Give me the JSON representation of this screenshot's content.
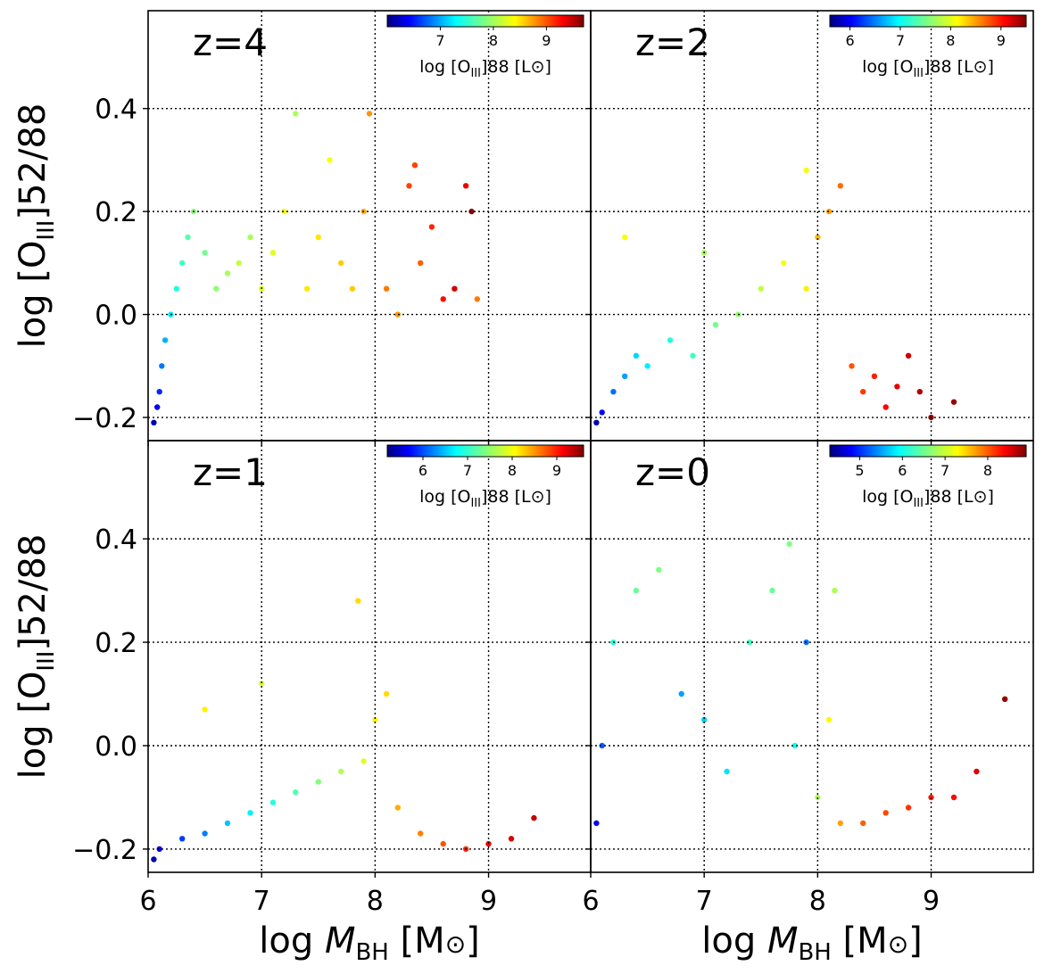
{
  "figure": {
    "ylabel_main": "log [O",
    "ylabel_sub": "III",
    "ylabel_tail": "]52/88",
    "xlabel_main": "log ",
    "xlabel_var": "M",
    "xlabel_sub": "BH",
    "xlabel_tail": " [M",
    "xlabel_unit_sym": "⊙",
    "xlabel_close": "]",
    "colormap": "jet",
    "colors": [
      "#00007f",
      "#0000ff",
      "#007fff",
      "#00ffff",
      "#7fff7f",
      "#ffff00",
      "#ff7f00",
      "#ff0000",
      "#7f0000"
    ]
  },
  "chart_data": [
    {
      "type": "scatter",
      "label": "z=4",
      "xlim": [
        6.0,
        9.9
      ],
      "ylim": [
        -0.245,
        0.59
      ],
      "xticks": [
        "6",
        "7",
        "8",
        "9"
      ],
      "yticks": [
        "−0.2",
        "0.0",
        "0.2",
        "0.4"
      ],
      "ytick_values": [
        -0.2,
        0.0,
        0.2,
        0.4
      ],
      "xtick_values": [
        6,
        7,
        8,
        9
      ],
      "grid": true,
      "colorbar": {
        "ticks": [
          "7",
          "8",
          "9"
        ],
        "tick_values": [
          7,
          8,
          9
        ],
        "range": [
          6.0,
          9.7
        ],
        "label_main": "log [O",
        "label_sub": "III",
        "label_tail": "]88 [L",
        "label_sym": "⊙",
        "label_close": "]",
        "placement": "top-right"
      },
      "points": [
        [
          6.05,
          -0.21,
          6.2
        ],
        [
          6.08,
          -0.18,
          6.4
        ],
        [
          6.1,
          -0.15,
          6.6
        ],
        [
          6.12,
          -0.1,
          6.9
        ],
        [
          6.15,
          -0.05,
          7.1
        ],
        [
          6.2,
          0.0,
          7.3
        ],
        [
          6.25,
          0.05,
          7.5
        ],
        [
          6.3,
          0.1,
          7.6
        ],
        [
          6.35,
          0.15,
          7.7
        ],
        [
          6.4,
          0.2,
          7.9
        ],
        [
          6.5,
          0.12,
          7.8
        ],
        [
          6.6,
          0.05,
          7.9
        ],
        [
          6.7,
          0.08,
          8.0
        ],
        [
          6.8,
          0.1,
          8.1
        ],
        [
          6.9,
          0.15,
          8.0
        ],
        [
          7.0,
          0.05,
          8.2
        ],
        [
          7.1,
          0.12,
          8.2
        ],
        [
          7.2,
          0.2,
          8.3
        ],
        [
          7.3,
          0.39,
          8.0
        ],
        [
          7.4,
          0.05,
          8.4
        ],
        [
          7.5,
          0.15,
          8.4
        ],
        [
          7.6,
          0.3,
          8.3
        ],
        [
          7.7,
          0.1,
          8.5
        ],
        [
          7.8,
          0.05,
          8.5
        ],
        [
          7.9,
          0.2,
          8.6
        ],
        [
          7.95,
          0.39,
          8.7
        ],
        [
          8.1,
          0.05,
          8.8
        ],
        [
          8.2,
          0.0,
          8.7
        ],
        [
          8.3,
          0.25,
          9.0
        ],
        [
          8.35,
          0.29,
          9.0
        ],
        [
          8.4,
          0.1,
          8.9
        ],
        [
          8.5,
          0.17,
          9.1
        ],
        [
          8.6,
          0.03,
          9.2
        ],
        [
          8.7,
          0.05,
          9.4
        ],
        [
          8.8,
          0.25,
          9.3
        ],
        [
          8.85,
          0.2,
          9.6
        ],
        [
          8.9,
          0.03,
          8.8
        ]
      ]
    },
    {
      "type": "scatter",
      "label": "z=2",
      "xlim": [
        6.0,
        9.9
      ],
      "ylim": [
        -0.245,
        0.59
      ],
      "xticks": [
        "6",
        "7",
        "8",
        "9"
      ],
      "yticks": [
        "−0.2",
        "0.0",
        "0.2",
        "0.4"
      ],
      "ytick_values": [
        -0.2,
        0.0,
        0.2,
        0.4
      ],
      "xtick_values": [
        6,
        7,
        8,
        9
      ],
      "grid": true,
      "colorbar": {
        "ticks": [
          "6",
          "7",
          "8",
          "9"
        ],
        "tick_values": [
          6,
          7,
          8,
          9
        ],
        "range": [
          5.6,
          9.5
        ],
        "label_main": "log [O",
        "label_sub": "III",
        "label_tail": "]88 [L",
        "label_sym": "⊙",
        "label_close": "]",
        "placement": "top-right"
      },
      "points": [
        [
          6.05,
          -0.21,
          5.8
        ],
        [
          6.1,
          -0.19,
          6.1
        ],
        [
          6.2,
          -0.15,
          6.5
        ],
        [
          6.3,
          -0.12,
          6.7
        ],
        [
          6.4,
          -0.08,
          6.9
        ],
        [
          6.5,
          -0.1,
          7.0
        ],
        [
          6.7,
          -0.05,
          7.2
        ],
        [
          6.9,
          -0.08,
          7.3
        ],
        [
          7.1,
          -0.02,
          7.5
        ],
        [
          7.3,
          0.0,
          7.6
        ],
        [
          7.5,
          0.05,
          7.8
        ],
        [
          7.7,
          0.1,
          8.0
        ],
        [
          7.9,
          0.05,
          8.1
        ],
        [
          8.0,
          0.15,
          8.3
        ],
        [
          8.1,
          0.2,
          8.4
        ],
        [
          8.2,
          0.25,
          8.6
        ],
        [
          8.3,
          -0.1,
          8.7
        ],
        [
          8.4,
          -0.15,
          8.8
        ],
        [
          8.5,
          -0.12,
          8.9
        ],
        [
          8.6,
          -0.18,
          9.0
        ],
        [
          8.7,
          -0.14,
          9.1
        ],
        [
          8.8,
          -0.08,
          9.2
        ],
        [
          8.9,
          -0.15,
          9.3
        ],
        [
          9.0,
          -0.2,
          9.4
        ],
        [
          9.2,
          -0.17,
          9.4
        ],
        [
          7.9,
          0.28,
          8.0
        ],
        [
          7.0,
          0.12,
          7.7
        ],
        [
          6.3,
          0.15,
          8.0
        ]
      ]
    },
    {
      "type": "scatter",
      "label": "z=1",
      "xlim": [
        6.0,
        9.9
      ],
      "ylim": [
        -0.245,
        0.59
      ],
      "xticks": [
        "6",
        "7",
        "8",
        "9"
      ],
      "yticks": [
        "−0.2",
        "0.0",
        "0.2",
        "0.4"
      ],
      "ytick_values": [
        -0.2,
        0.0,
        0.2,
        0.4
      ],
      "xtick_values": [
        6,
        7,
        8,
        9
      ],
      "grid": true,
      "colorbar": {
        "ticks": [
          "6",
          "7",
          "8",
          "9"
        ],
        "tick_values": [
          6,
          7,
          8,
          9
        ],
        "range": [
          5.2,
          9.6
        ],
        "label_main": "log [O",
        "label_sub": "III",
        "label_tail": "]88 [L",
        "label_sym": "⊙",
        "label_close": "]",
        "placement": "top-right"
      },
      "points": [
        [
          6.05,
          -0.22,
          5.4
        ],
        [
          6.1,
          -0.2,
          5.7
        ],
        [
          6.3,
          -0.18,
          6.0
        ],
        [
          6.5,
          -0.17,
          6.3
        ],
        [
          6.7,
          -0.15,
          6.6
        ],
        [
          6.9,
          -0.13,
          6.8
        ],
        [
          7.1,
          -0.11,
          7.0
        ],
        [
          7.3,
          -0.09,
          7.2
        ],
        [
          7.5,
          -0.07,
          7.4
        ],
        [
          7.7,
          -0.05,
          7.6
        ],
        [
          7.9,
          -0.03,
          7.8
        ],
        [
          8.0,
          0.05,
          8.0
        ],
        [
          8.1,
          0.1,
          8.1
        ],
        [
          8.2,
          -0.12,
          8.3
        ],
        [
          8.4,
          -0.17,
          8.5
        ],
        [
          8.6,
          -0.19,
          8.7
        ],
        [
          8.8,
          -0.2,
          8.9
        ],
        [
          9.0,
          -0.19,
          9.1
        ],
        [
          9.2,
          -0.18,
          9.2
        ],
        [
          9.4,
          -0.14,
          9.3
        ],
        [
          7.85,
          0.28,
          8.1
        ],
        [
          6.5,
          0.07,
          8.0
        ],
        [
          7.0,
          0.12,
          7.8
        ]
      ]
    },
    {
      "type": "scatter",
      "label": "z=0",
      "xlim": [
        6.0,
        9.9
      ],
      "ylim": [
        -0.245,
        0.59
      ],
      "xticks": [
        "6",
        "7",
        "8",
        "9"
      ],
      "yticks": [
        "−0.2",
        "0.0",
        "0.2",
        "0.4"
      ],
      "ytick_values": [
        -0.2,
        0.0,
        0.2,
        0.4
      ],
      "xtick_values": [
        6,
        7,
        8,
        9
      ],
      "grid": true,
      "colorbar": {
        "ticks": [
          "5",
          "6",
          "7",
          "8"
        ],
        "tick_values": [
          5,
          6,
          7,
          8
        ],
        "range": [
          4.3,
          8.9
        ],
        "label_main": "log [O",
        "label_sub": "III",
        "label_tail": "]88 [L",
        "label_sym": "⊙",
        "label_close": "]",
        "placement": "top-right"
      },
      "points": [
        [
          6.05,
          -0.15,
          4.8
        ],
        [
          6.1,
          0.0,
          5.3
        ],
        [
          6.2,
          0.2,
          6.2
        ],
        [
          6.4,
          0.3,
          6.5
        ],
        [
          6.6,
          0.34,
          6.6
        ],
        [
          6.8,
          0.1,
          5.6
        ],
        [
          7.0,
          0.05,
          5.8
        ],
        [
          7.2,
          -0.05,
          5.9
        ],
        [
          7.4,
          0.2,
          6.3
        ],
        [
          7.6,
          0.3,
          6.5
        ],
        [
          7.8,
          0.0,
          6.1
        ],
        [
          7.9,
          0.2,
          5.4
        ],
        [
          8.0,
          -0.1,
          6.8
        ],
        [
          8.1,
          0.05,
          7.2
        ],
        [
          8.2,
          -0.15,
          7.6
        ],
        [
          8.4,
          -0.15,
          7.9
        ],
        [
          8.6,
          -0.13,
          8.0
        ],
        [
          8.8,
          -0.12,
          8.1
        ],
        [
          9.0,
          -0.1,
          8.2
        ],
        [
          9.2,
          -0.1,
          8.3
        ],
        [
          9.4,
          -0.05,
          8.5
        ],
        [
          9.65,
          0.09,
          8.8
        ],
        [
          7.75,
          0.39,
          6.6
        ],
        [
          8.15,
          0.3,
          6.8
        ]
      ]
    }
  ]
}
